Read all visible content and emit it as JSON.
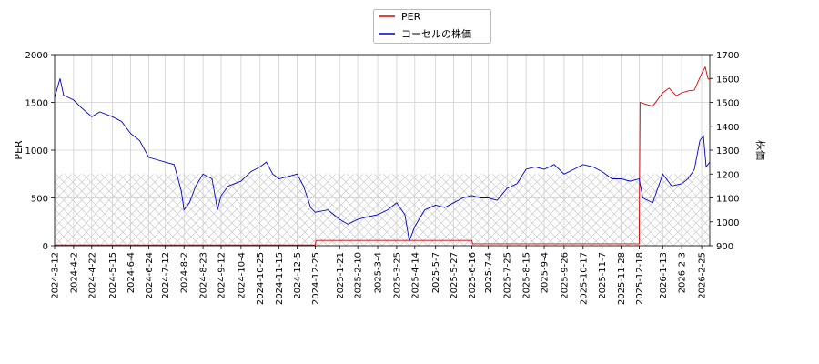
{
  "chart_data": {
    "type": "line",
    "title": "",
    "x_tick_labels": [
      "2024-3-12",
      "2024-4-2",
      "2024-4-22",
      "2024-5-15",
      "2024-6-4",
      "2024-6-24",
      "2024-7-12",
      "2024-8-2",
      "2024-8-23",
      "2024-9-12",
      "2024-10-4",
      "2024-10-25",
      "2024-11-15",
      "2024-12-5",
      "2024-12-25",
      "2025-1-21",
      "2025-2-10",
      "2025-3-4",
      "2025-3-25",
      "2025-4-14",
      "2025-5-7",
      "2025-5-27",
      "2025-6-16",
      "2025-7-4",
      "2025-7-25",
      "2025-8-15",
      "2025-9-4",
      "2025-9-26",
      "2025-10-17",
      "2025-11-7",
      "2025-11-28",
      "2025-12-18",
      "2026-1-13",
      "2026-2-3",
      "2026-2-25"
    ],
    "x_range": [
      "2024-3-12",
      "2026-3-6"
    ],
    "left_axis": {
      "label": "PER",
      "range": [
        0,
        2000
      ],
      "ticks": [
        0,
        500,
        1000,
        1500,
        2000
      ]
    },
    "right_axis": {
      "label": "株価",
      "range": [
        900,
        1700
      ],
      "ticks": [
        900,
        1000,
        1100,
        1200,
        1300,
        1400,
        1500,
        1600,
        1700
      ]
    },
    "grid": true,
    "legend_position": "top-center",
    "series": [
      {
        "name": "PER",
        "axis": "left",
        "color": "#dd0000",
        "points": [
          [
            "2024-3-12",
            8
          ],
          [
            "2024-12-25",
            8
          ],
          [
            "2024-12-26",
            55
          ],
          [
            "2025-6-16",
            55
          ],
          [
            "2025-6-17",
            20
          ],
          [
            "2025-12-18",
            20
          ],
          [
            "2025-12-19",
            1500
          ],
          [
            "2025-12-25",
            1480
          ],
          [
            "2026-1-2",
            1460
          ],
          [
            "2026-1-13",
            1600
          ],
          [
            "2026-1-20",
            1650
          ],
          [
            "2026-1-28",
            1570
          ],
          [
            "2026-2-3",
            1600
          ],
          [
            "2026-2-10",
            1620
          ],
          [
            "2026-2-17",
            1630
          ],
          [
            "2026-2-25",
            1800
          ],
          [
            "2026-3-1",
            1870
          ],
          [
            "2026-3-4",
            1750
          ],
          [
            "2026-3-6",
            1740
          ]
        ]
      },
      {
        "name": "コーセルの株価",
        "axis": "right",
        "color": "#0000cc",
        "points": [
          [
            "2024-3-12",
            1520
          ],
          [
            "2024-3-18",
            1600
          ],
          [
            "2024-3-22",
            1530
          ],
          [
            "2024-4-2",
            1510
          ],
          [
            "2024-4-10",
            1480
          ],
          [
            "2024-4-22",
            1440
          ],
          [
            "2024-5-1",
            1460
          ],
          [
            "2024-5-15",
            1440
          ],
          [
            "2024-5-25",
            1420
          ],
          [
            "2024-6-4",
            1370
          ],
          [
            "2024-6-14",
            1340
          ],
          [
            "2024-6-24",
            1270
          ],
          [
            "2024-7-3",
            1260
          ],
          [
            "2024-7-12",
            1250
          ],
          [
            "2024-7-22",
            1240
          ],
          [
            "2024-7-30",
            1130
          ],
          [
            "2024-8-2",
            1050
          ],
          [
            "2024-8-8",
            1080
          ],
          [
            "2024-8-15",
            1150
          ],
          [
            "2024-8-23",
            1200
          ],
          [
            "2024-9-2",
            1180
          ],
          [
            "2024-9-8",
            1050
          ],
          [
            "2024-9-12",
            1110
          ],
          [
            "2024-9-20",
            1150
          ],
          [
            "2024-10-4",
            1170
          ],
          [
            "2024-10-15",
            1210
          ],
          [
            "2024-10-25",
            1230
          ],
          [
            "2024-11-1",
            1250
          ],
          [
            "2024-11-8",
            1200
          ],
          [
            "2024-11-15",
            1180
          ],
          [
            "2024-11-25",
            1190
          ],
          [
            "2024-12-5",
            1200
          ],
          [
            "2024-12-12",
            1150
          ],
          [
            "2024-12-20",
            1060
          ],
          [
            "2024-12-25",
            1040
          ],
          [
            "2025-1-8",
            1050
          ],
          [
            "2025-1-21",
            1010
          ],
          [
            "2025-1-30",
            990
          ],
          [
            "2025-2-10",
            1010
          ],
          [
            "2025-2-20",
            1020
          ],
          [
            "2025-3-4",
            1030
          ],
          [
            "2025-3-15",
            1050
          ],
          [
            "2025-3-25",
            1080
          ],
          [
            "2025-4-3",
            1030
          ],
          [
            "2025-4-8",
            920
          ],
          [
            "2025-4-14",
            980
          ],
          [
            "2025-4-25",
            1050
          ],
          [
            "2025-5-7",
            1070
          ],
          [
            "2025-5-17",
            1060
          ],
          [
            "2025-5-27",
            1080
          ],
          [
            "2025-6-6",
            1100
          ],
          [
            "2025-6-16",
            1110
          ],
          [
            "2025-6-26",
            1100
          ],
          [
            "2025-7-4",
            1100
          ],
          [
            "2025-7-14",
            1090
          ],
          [
            "2025-7-25",
            1140
          ],
          [
            "2025-8-5",
            1160
          ],
          [
            "2025-8-15",
            1220
          ],
          [
            "2025-8-25",
            1230
          ],
          [
            "2025-9-4",
            1220
          ],
          [
            "2025-9-15",
            1240
          ],
          [
            "2025-9-26",
            1200
          ],
          [
            "2025-10-7",
            1220
          ],
          [
            "2025-10-17",
            1240
          ],
          [
            "2025-10-28",
            1230
          ],
          [
            "2025-11-7",
            1210
          ],
          [
            "2025-11-18",
            1180
          ],
          [
            "2025-11-28",
            1180
          ],
          [
            "2025-12-8",
            1170
          ],
          [
            "2025-12-18",
            1180
          ],
          [
            "2025-12-22",
            1100
          ],
          [
            "2026-1-2",
            1080
          ],
          [
            "2026-1-13",
            1200
          ],
          [
            "2026-1-23",
            1150
          ],
          [
            "2026-2-3",
            1160
          ],
          [
            "2026-2-10",
            1180
          ],
          [
            "2026-2-17",
            1220
          ],
          [
            "2026-2-23",
            1340
          ],
          [
            "2026-2-27",
            1360
          ],
          [
            "2026-3-2",
            1230
          ],
          [
            "2026-3-6",
            1250
          ]
        ]
      }
    ]
  }
}
